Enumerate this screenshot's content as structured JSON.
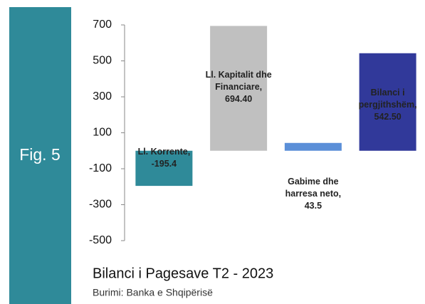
{
  "chart_data": {
    "type": "bar",
    "fig_label": "Fig. 5",
    "title": "Bilanci i Pagesave T2 - 2023",
    "source": "Burimi: Banka e Shqipërisë",
    "categories": [
      "Ll. Korrente,",
      "Ll. Kapitalit dhe Financiare,",
      "Gabime dhe harresa neto,",
      "Bilanci i pergjithshëm,"
    ],
    "values": [
      -195.4,
      694.4,
      43.5,
      542.5
    ],
    "value_labels": [
      "-195.4",
      "694.40",
      "43.5",
      "542.50"
    ],
    "colors": [
      "#2f8a99",
      "#c0c0c0",
      "#5b8fd8",
      "#31399a"
    ],
    "ylim": [
      -500,
      700
    ],
    "yticks": [
      700,
      500,
      300,
      100,
      -100,
      -300,
      -500
    ],
    "grid": false
  }
}
